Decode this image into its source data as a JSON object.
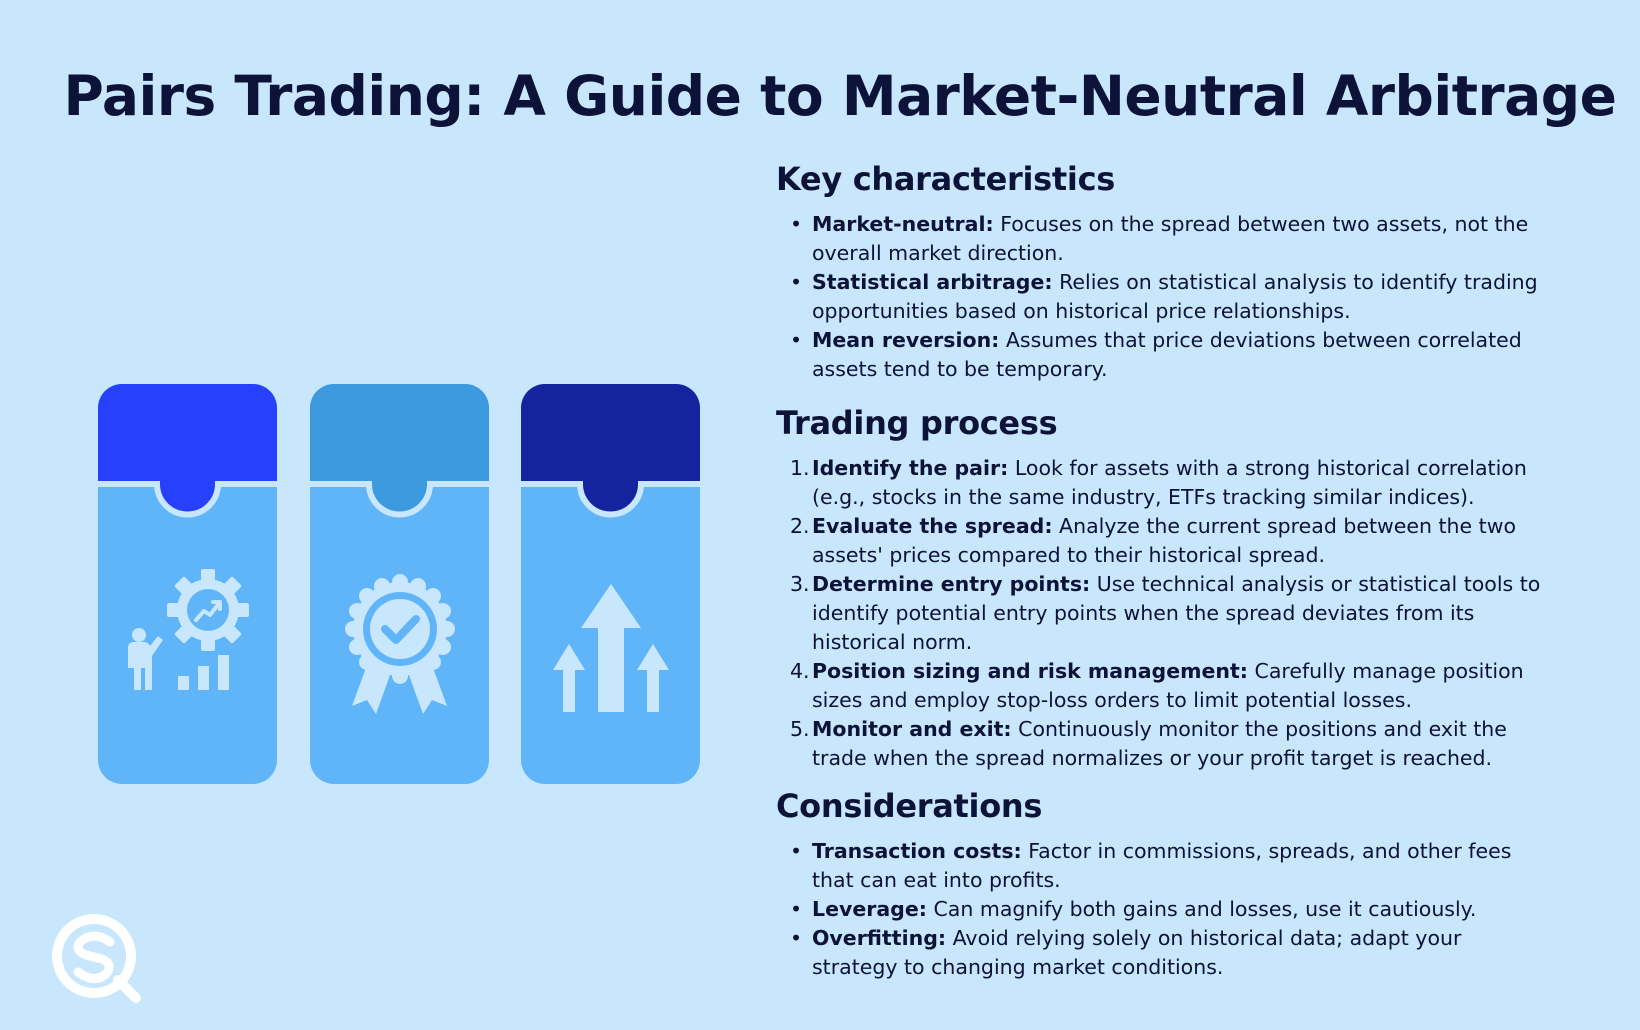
{
  "title": "Pairs Trading: A Guide to Market-Neutral Arbitrage",
  "colors": {
    "background": "#c8e6fc",
    "text": "#0c1238",
    "card_body": "#60b5f9",
    "card1_top": "#2640fb",
    "card2_top": "#3d9ade",
    "card3_top": "#14239e"
  },
  "cards": [
    {
      "icon": "gear-growth-chart-icon"
    },
    {
      "icon": "award-badge-icon"
    },
    {
      "icon": "up-arrows-icon"
    }
  ],
  "sections": {
    "key": {
      "heading": "Key characteristics",
      "items": [
        {
          "term": "Market-neutral:",
          "text": " Focuses on the spread between two assets, not the overall market direction."
        },
        {
          "term": "Statistical arbitrage:",
          "text": " Relies on statistical analysis to identify trading opportunities based on historical price relationships."
        },
        {
          "term": "Mean reversion:",
          "text": " Assumes that price deviations between correlated assets tend to be temporary."
        }
      ]
    },
    "process": {
      "heading": "Trading process",
      "items": [
        {
          "num": "1.",
          "term": "Identify the pair:",
          "text": " Look for assets with a strong historical correlation (e.g., stocks in the same industry, ETFs tracking similar indices)."
        },
        {
          "num": "2.",
          "term": "Evaluate the spread:",
          "text": " Analyze the current spread between the two assets' prices compared to their historical spread."
        },
        {
          "num": "3.",
          "term": "Determine entry points:",
          "text": " Use technical analysis or statistical tools to identify potential entry points when the spread deviates from its historical norm."
        },
        {
          "num": "4.",
          "term": "Position sizing and risk management:",
          "text": " Carefully manage position sizes and employ stop-loss orders to limit potential losses."
        },
        {
          "num": "5.",
          "term": "Monitor and exit:",
          "text": " Continuously monitor the positions and exit the trade when the spread normalizes or your profit target is reached."
        }
      ]
    },
    "considerations": {
      "heading": "Considerations",
      "items": [
        {
          "term": "Transaction costs:",
          "text": " Factor in commissions, spreads, and other fees that can eat into profits."
        },
        {
          "term": "Leverage:",
          "text": " Can magnify both gains and losses, use it cautiously."
        },
        {
          "term": "Overfitting:",
          "text": " Avoid relying solely on historical data; adapt your strategy to changing market conditions."
        }
      ]
    }
  },
  "logo": {
    "icon": "sq-logo-icon"
  }
}
